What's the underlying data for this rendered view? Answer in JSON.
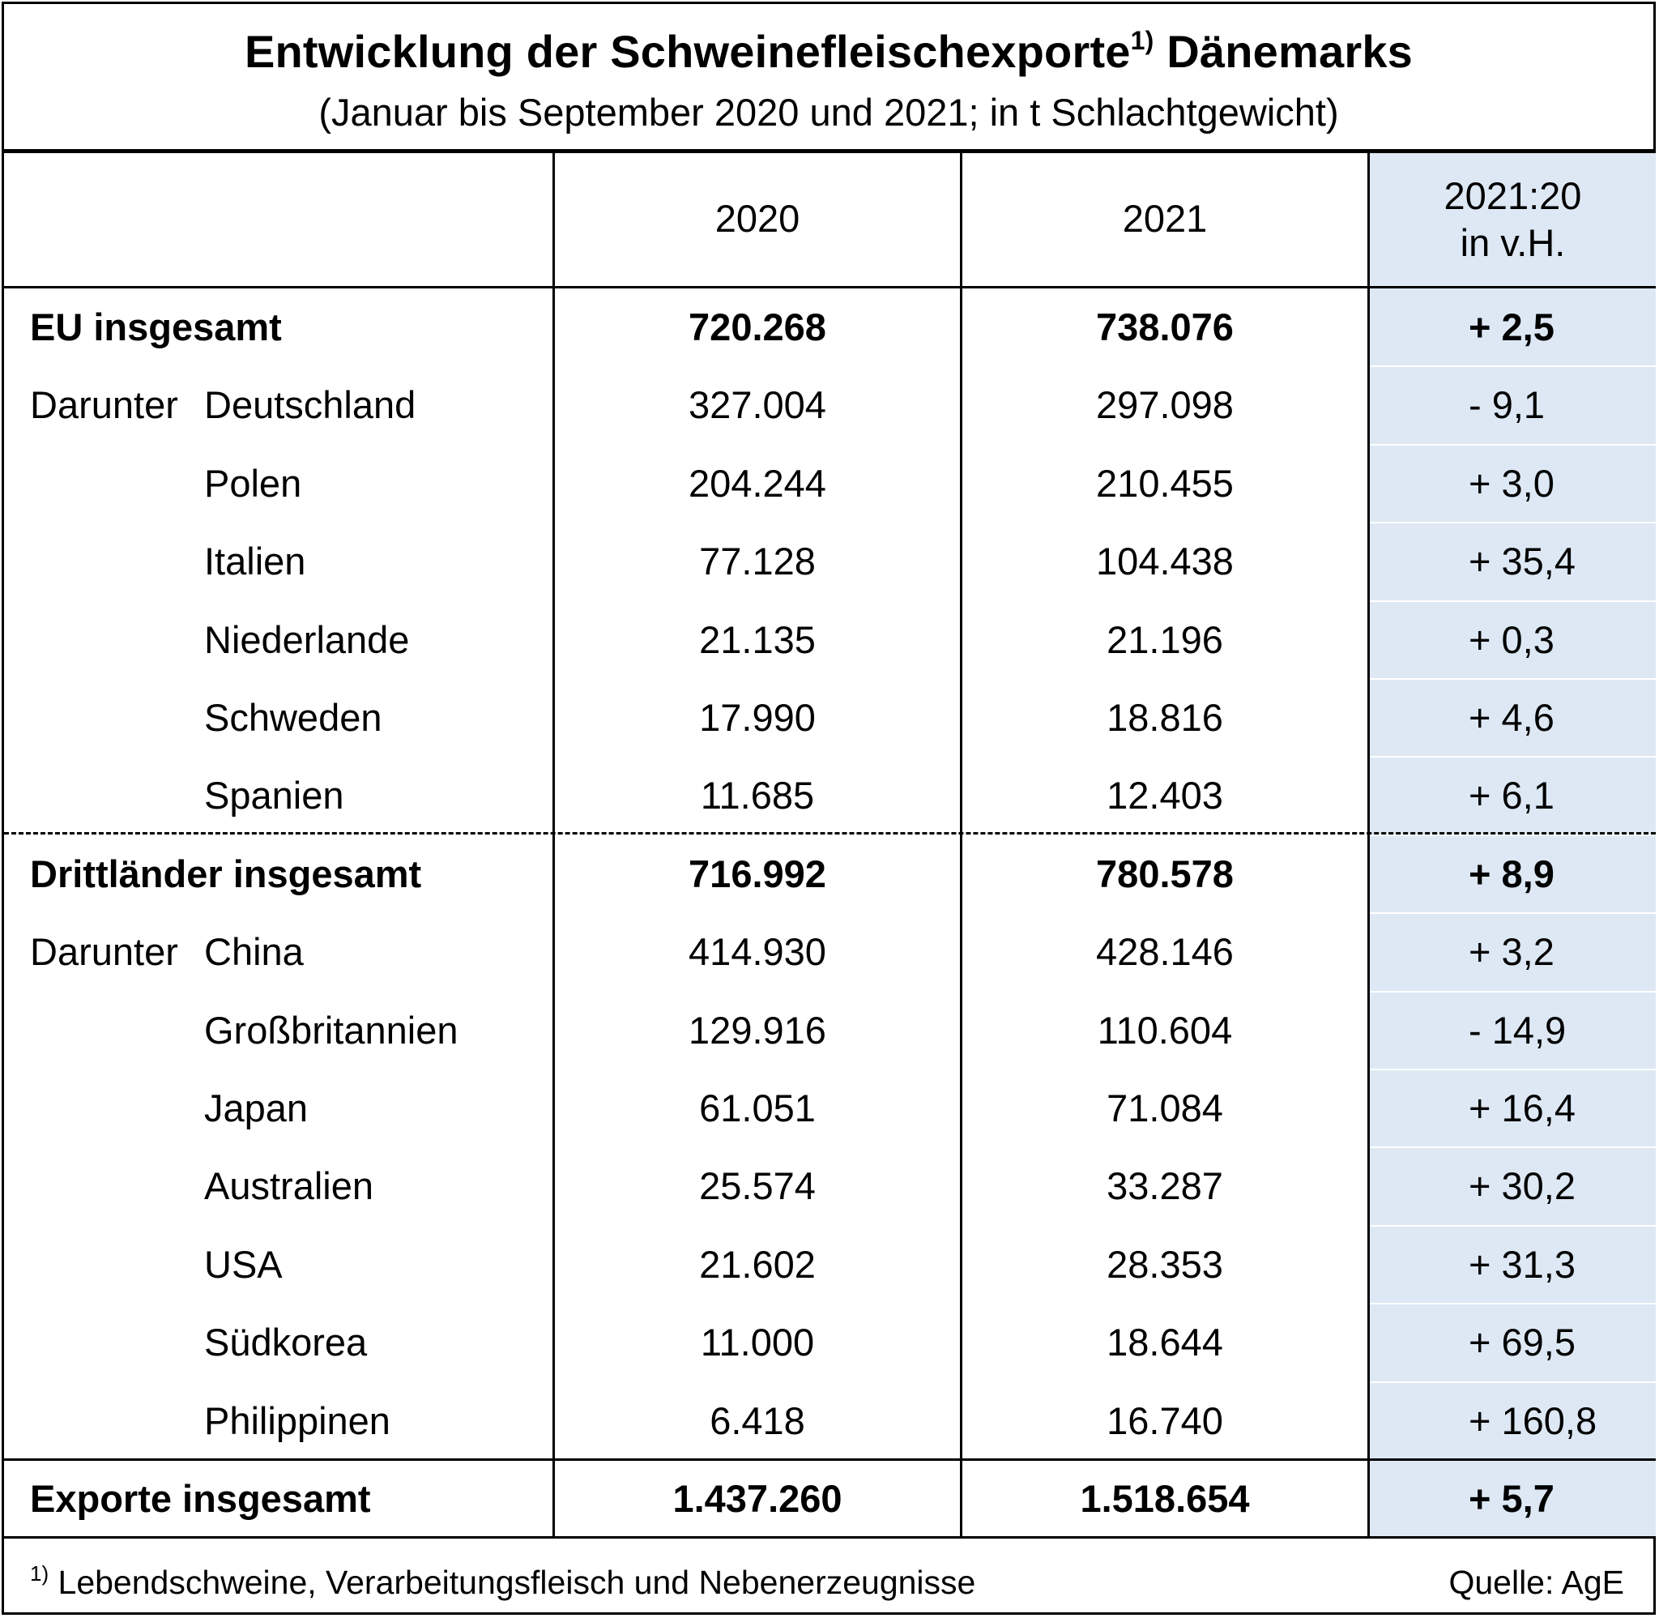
{
  "title": {
    "main": "Entwicklung der Schweinefleischexporte",
    "footnote_mark": "1)",
    "main_suffix": " Dänemarks",
    "subtitle": "(Januar bis September 2020 und 2021; in t Schlachtgewicht)"
  },
  "header": {
    "col_2020": "2020",
    "col_2021": "2021",
    "col_change_line1": "2021:20",
    "col_change_line2": "in v.H."
  },
  "rows": [
    {
      "prefix": "EU insgesamt",
      "label": "",
      "v2020": "720.268",
      "v2021": "738.076",
      "change": "+ 2,5"
    },
    {
      "prefix": "Darunter",
      "label": "Deutschland",
      "v2020": "327.004",
      "v2021": "297.098",
      "change": "- 9,1"
    },
    {
      "prefix": "",
      "label": "Polen",
      "v2020": "204.244",
      "v2021": "210.455",
      "change": "+ 3,0"
    },
    {
      "prefix": "",
      "label": "Italien",
      "v2020": "77.128",
      "v2021": "104.438",
      "change": "+ 35,4"
    },
    {
      "prefix": "",
      "label": "Niederlande",
      "v2020": "21.135",
      "v2021": "21.196",
      "change": "+ 0,3"
    },
    {
      "prefix": "",
      "label": "Schweden",
      "v2020": "17.990",
      "v2021": "18.816",
      "change": "+ 4,6"
    },
    {
      "prefix": "",
      "label": "Spanien",
      "v2020": "11.685",
      "v2021": "12.403",
      "change": "+ 6,1"
    },
    {
      "prefix": "Drittländer insgesamt",
      "label": "",
      "v2020": "716.992",
      "v2021": "780.578",
      "change": "+ 8,9"
    },
    {
      "prefix": "Darunter",
      "label": "China",
      "v2020": "414.930",
      "v2021": "428.146",
      "change": "+ 3,2"
    },
    {
      "prefix": "",
      "label": "Großbritannien",
      "v2020": "129.916",
      "v2021": "110.604",
      "change": "- 14,9"
    },
    {
      "prefix": "",
      "label": "Japan",
      "v2020": "61.051",
      "v2021": "71.084",
      "change": "+ 16,4"
    },
    {
      "prefix": "",
      "label": "Australien",
      "v2020": "25.574",
      "v2021": "33.287",
      "change": "+ 30,2"
    },
    {
      "prefix": "",
      "label": "USA",
      "v2020": "21.602",
      "v2021": "28.353",
      "change": "+ 31,3"
    },
    {
      "prefix": "",
      "label": "Südkorea",
      "v2020": "11.000",
      "v2021": "18.644",
      "change": "+ 69,5"
    },
    {
      "prefix": "",
      "label": "Philippinen",
      "v2020": "6.418",
      "v2021": "16.740",
      "change": "+ 160,8"
    },
    {
      "prefix": "Exporte insgesamt",
      "label": "",
      "v2020": "1.437.260",
      "v2021": "1.518.654",
      "change": "+ 5,7"
    }
  ],
  "footer": {
    "footnote_mark": "1)",
    "footnote": " Lebendschweine, Verarbeitungsfleisch und Nebenerzeugnisse",
    "source": "Quelle: AgE"
  },
  "colors": {
    "change_column_shade": "#dde8f4",
    "lines": "#000000"
  }
}
